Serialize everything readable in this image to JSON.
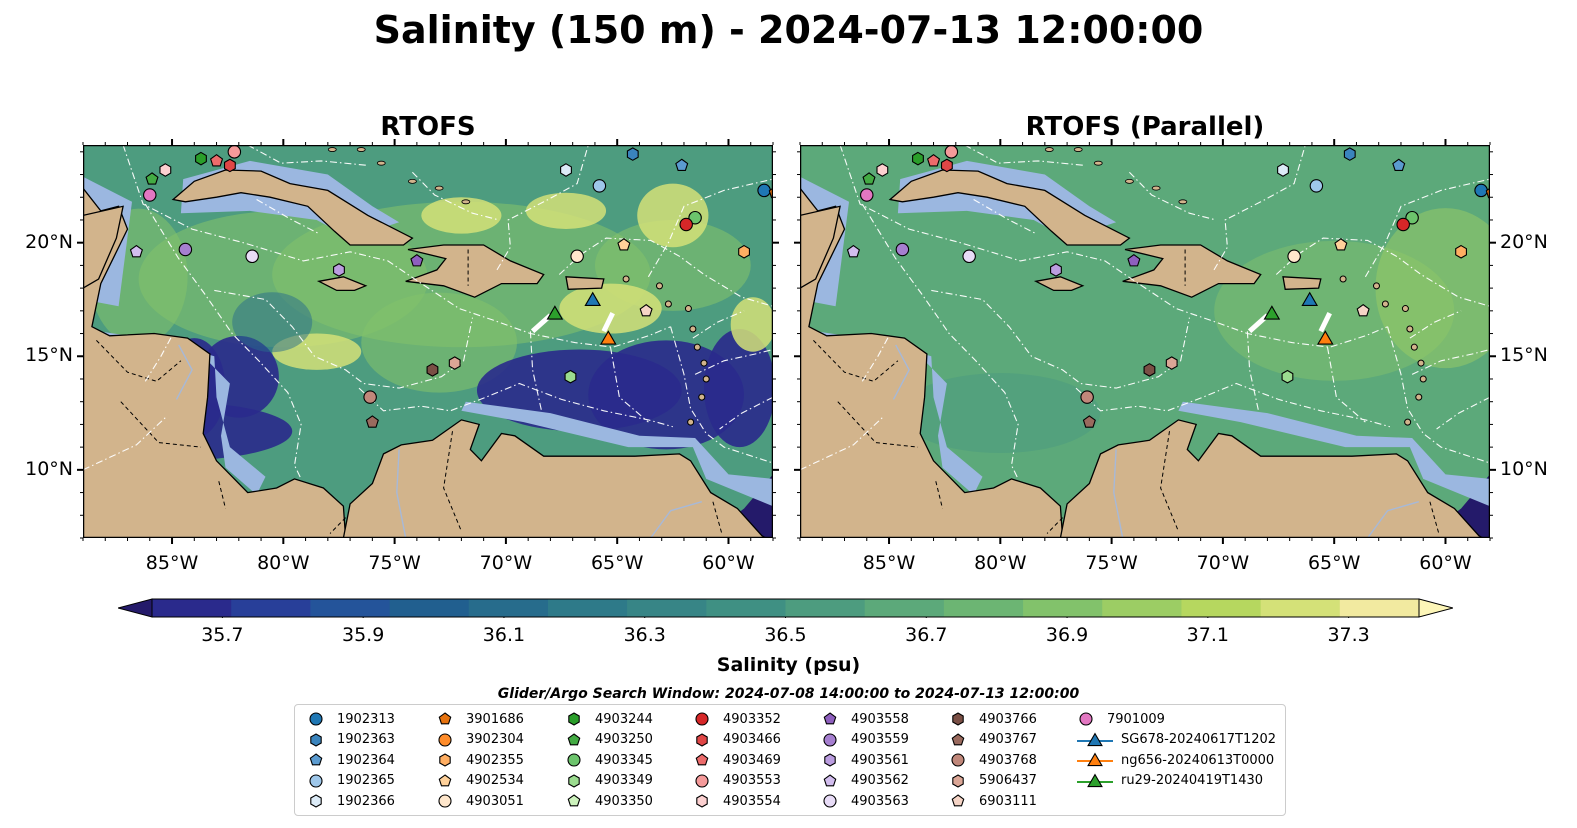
{
  "title": "Salinity (150 m) - 2024-07-13 12:00:00",
  "panels": [
    {
      "title": "RTOFS",
      "variant": "rtofs"
    },
    {
      "title": "RTOFS (Parallel)",
      "variant": "parallel"
    }
  ],
  "lon_ticks": [
    "85°W",
    "80°W",
    "75°W",
    "70°W",
    "65°W",
    "60°W"
  ],
  "lat_ticks": [
    "20°N",
    "15°N",
    "10°N"
  ],
  "extent": {
    "lon": [
      -89,
      -58
    ],
    "lat": [
      7,
      24.3
    ]
  },
  "colorbar": {
    "label": "Salinity (psu)",
    "min": 35.6,
    "max": 37.4,
    "step": 0.1,
    "ticks": [
      "35.7",
      "35.9",
      "36.1",
      "36.3",
      "36.5",
      "36.7",
      "36.9",
      "37.1",
      "37.3"
    ],
    "colors": [
      "#241a6a",
      "#2a2a8c",
      "#283f99",
      "#24549a",
      "#215f8f",
      "#276c8c",
      "#2e7a89",
      "#378586",
      "#3f9083",
      "#4d9c7f",
      "#5ca97a",
      "#6cb573",
      "#82c26b",
      "#9ccd64",
      "#b6d75f",
      "#d4e178",
      "#f2eaa0",
      "#fdf6b8"
    ]
  },
  "search_window": "Glider/Argo Search Window: 2024-07-08 14:00:00 to 2024-07-13 12:00:00",
  "legend": [
    {
      "label": "1902313",
      "marker": "circle",
      "color": "#1f77b4"
    },
    {
      "label": "1902363",
      "marker": "hexagon",
      "color": "#3a84bd"
    },
    {
      "label": "1902364",
      "marker": "pentagon",
      "color": "#5b9bd0"
    },
    {
      "label": "1902365",
      "marker": "circle",
      "color": "#9ec7ea"
    },
    {
      "label": "1902366",
      "marker": "hexagon",
      "color": "#dcebf7"
    },
    {
      "label": "3901686",
      "marker": "pentagon",
      "color": "#e6720e"
    },
    {
      "label": "3902304",
      "marker": "circle",
      "color": "#ff8c2a"
    },
    {
      "label": "4902355",
      "marker": "hexagon",
      "color": "#ffae62"
    },
    {
      "label": "4902534",
      "marker": "pentagon",
      "color": "#ffd19a"
    },
    {
      "label": "4903051",
      "marker": "circle",
      "color": "#ffe7cc"
    },
    {
      "label": "4903244",
      "marker": "hexagon",
      "color": "#2a9e2a"
    },
    {
      "label": "4903250",
      "marker": "pentagon",
      "color": "#43ab43"
    },
    {
      "label": "4903345",
      "marker": "circle",
      "color": "#6cc46c"
    },
    {
      "label": "4903349",
      "marker": "hexagon",
      "color": "#9bdc8f"
    },
    {
      "label": "4903350",
      "marker": "pentagon",
      "color": "#cdf3bd"
    },
    {
      "label": "4903352",
      "marker": "circle",
      "color": "#d62728"
    },
    {
      "label": "4903466",
      "marker": "hexagon",
      "color": "#e04646"
    },
    {
      "label": "4903469",
      "marker": "pentagon",
      "color": "#ec6b6b"
    },
    {
      "label": "4903553",
      "marker": "circle",
      "color": "#f59a9a"
    },
    {
      "label": "4903554",
      "marker": "hexagon",
      "color": "#fcd0d0"
    },
    {
      "label": "4903558",
      "marker": "pentagon",
      "color": "#8e5fbe"
    },
    {
      "label": "4903559",
      "marker": "circle",
      "color": "#a67fd0"
    },
    {
      "label": "4903561",
      "marker": "hexagon",
      "color": "#bb9de0"
    },
    {
      "label": "4903562",
      "marker": "pentagon",
      "color": "#d2bdee"
    },
    {
      "label": "4903563",
      "marker": "circle",
      "color": "#e8dcf7"
    },
    {
      "label": "4903766",
      "marker": "hexagon",
      "color": "#7a4f45"
    },
    {
      "label": "4903767",
      "marker": "pentagon",
      "color": "#9a6a5e"
    },
    {
      "label": "4903768",
      "marker": "circle",
      "color": "#c0877a"
    },
    {
      "label": "5906437",
      "marker": "hexagon",
      "color": "#dba696"
    },
    {
      "label": "6903111",
      "marker": "pentagon",
      "color": "#f5d4c6"
    },
    {
      "label": "7901009",
      "marker": "circle",
      "color": "#e377c2"
    },
    {
      "label": "SG678-20240617T1202",
      "marker": "triangle",
      "color": "#1f77b4"
    },
    {
      "label": "ng656-20240613T0000",
      "marker": "triangle",
      "color": "#ff7f0e"
    },
    {
      "label": "ru29-20240419T1430",
      "marker": "triangle",
      "color": "#2ca02c"
    }
  ],
  "map_markers": [
    {
      "id": "1902313",
      "lon": -58.4,
      "lat": 22.3
    },
    {
      "id": "1902363",
      "lon": -64.3,
      "lat": 23.9
    },
    {
      "id": "1902364",
      "lon": -62.1,
      "lat": 23.4
    },
    {
      "id": "1902365",
      "lon": -65.8,
      "lat": 22.5
    },
    {
      "id": "1902366",
      "lon": -67.3,
      "lat": 23.2
    },
    {
      "id": "3901686",
      "lon": -57.9,
      "lat": 22.2
    },
    {
      "id": "4902355",
      "lon": -59.3,
      "lat": 19.6
    },
    {
      "id": "4902534",
      "lon": -64.7,
      "lat": 19.9
    },
    {
      "id": "4903051",
      "lon": -66.8,
      "lat": 19.4
    },
    {
      "id": "4903244",
      "lon": -83.7,
      "lat": 23.7
    },
    {
      "id": "4903250",
      "lon": -85.9,
      "lat": 22.8
    },
    {
      "id": "4903345",
      "lon": -61.5,
      "lat": 21.1
    },
    {
      "id": "4903349",
      "lon": -67.1,
      "lat": 14.1
    },
    {
      "id": "4903352",
      "lon": -61.9,
      "lat": 20.8
    },
    {
      "id": "4903466",
      "lon": -82.4,
      "lat": 23.4
    },
    {
      "id": "4903469",
      "lon": -83.0,
      "lat": 23.6
    },
    {
      "id": "4903553",
      "lon": -82.2,
      "lat": 24.0
    },
    {
      "id": "4903554",
      "lon": -85.3,
      "lat": 23.2
    },
    {
      "id": "4903558",
      "lon": -74.0,
      "lat": 19.2
    },
    {
      "id": "4903559",
      "lon": -84.4,
      "lat": 19.7
    },
    {
      "id": "4903561",
      "lon": -77.5,
      "lat": 18.8
    },
    {
      "id": "4903562",
      "lon": -86.6,
      "lat": 19.6
    },
    {
      "id": "4903563",
      "lon": -81.4,
      "lat": 19.4
    },
    {
      "id": "4903766",
      "lon": -73.3,
      "lat": 14.4
    },
    {
      "id": "4903767",
      "lon": -76.0,
      "lat": 12.1
    },
    {
      "id": "4903768",
      "lon": -76.1,
      "lat": 13.2
    },
    {
      "id": "5906437",
      "lon": -72.3,
      "lat": 14.7
    },
    {
      "id": "6903111",
      "lon": -63.7,
      "lat": 17.0
    },
    {
      "id": "7901009",
      "lon": -86.0,
      "lat": 22.1
    },
    {
      "id": "SG678-20240617T1202",
      "lon": -66.1,
      "lat": 17.5
    },
    {
      "id": "ng656-20240613T0000",
      "lon": -65.4,
      "lat": 15.8
    },
    {
      "id": "ru29-20240419T1430",
      "lon": -67.8,
      "lat": 16.9
    }
  ],
  "glider_tracks": [
    {
      "id": "ru29-20240419T1430",
      "points": [
        [
          -68.8,
          16.1
        ],
        [
          -68.0,
          16.8
        ]
      ]
    },
    {
      "id": "ng656-20240613T0000",
      "points": [
        [
          -65.6,
          16.1
        ],
        [
          -65.2,
          16.9
        ]
      ]
    }
  ]
}
